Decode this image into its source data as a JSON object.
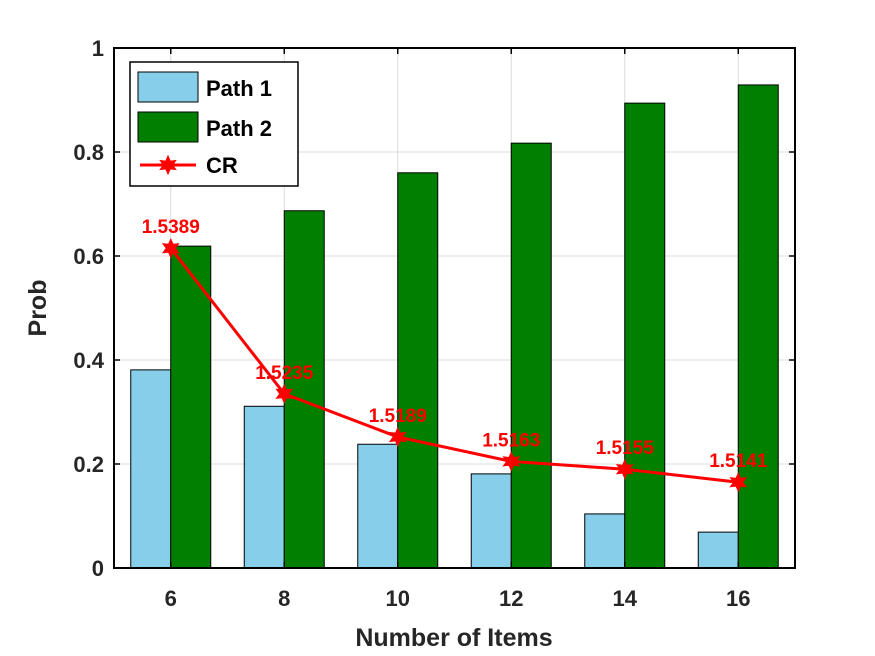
{
  "chart_data": {
    "type": "bar",
    "categories": [
      "6",
      "8",
      "10",
      "12",
      "14",
      "16"
    ],
    "series": [
      {
        "name": "Path 1",
        "kind": "bar",
        "color": "#87CEEB",
        "values": [
          0.381,
          0.311,
          0.238,
          0.181,
          0.104,
          0.069
        ]
      },
      {
        "name": "Path 2",
        "kind": "bar",
        "color": "#007F00",
        "values": [
          0.619,
          0.687,
          0.76,
          0.817,
          0.894,
          0.929
        ]
      },
      {
        "name": "CR",
        "kind": "line",
        "color": "#FF0000",
        "marker": "hexagram",
        "values": [
          0.615,
          0.335,
          0.252,
          0.205,
          0.19,
          0.165
        ],
        "labels": [
          "1.5389",
          "1.5235",
          "1.5189",
          "1.5163",
          "1.5155",
          "1.5141"
        ]
      }
    ],
    "xlabel": "Number of Items",
    "ylabel": "Prob",
    "ylim": [
      0,
      1
    ],
    "yticks": [
      "0",
      "0.2",
      "0.4",
      "0.6",
      "0.8",
      "1"
    ],
    "grid": true,
    "legend_position": "top-left"
  }
}
